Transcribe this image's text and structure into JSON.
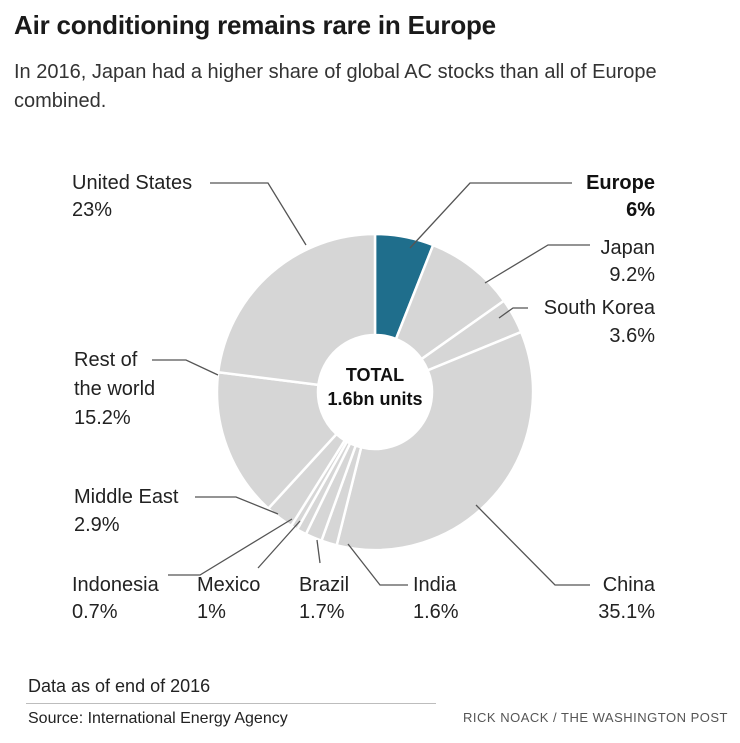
{
  "header": {
    "title": "Air conditioning remains rare in Europe",
    "subtitle": "In 2016, Japan had a higher share of global AC stocks than all of Europe combined."
  },
  "chart_data": {
    "type": "pie",
    "variant": "donut",
    "title": "Air conditioning remains rare in Europe",
    "center_label": [
      "TOTAL",
      "1.6bn units"
    ],
    "unit": "%",
    "slices": [
      {
        "name": "Europe",
        "value": 6,
        "label": "6%",
        "highlight": true
      },
      {
        "name": "Japan",
        "value": 9.2,
        "label": "9.2%"
      },
      {
        "name": "South Korea",
        "value": 3.6,
        "label": "3.6%"
      },
      {
        "name": "China",
        "value": 35.1,
        "label": "35.1%"
      },
      {
        "name": "India",
        "value": 1.6,
        "label": "1.6%"
      },
      {
        "name": "Brazil",
        "value": 1.7,
        "label": "1.7%"
      },
      {
        "name": "Mexico",
        "value": 1,
        "label": "1%"
      },
      {
        "name": "Indonesia",
        "value": 0.7,
        "label": "0.7%"
      },
      {
        "name": "Middle East",
        "value": 2.9,
        "label": "2.9%"
      },
      {
        "name": "Rest of the world",
        "value": 15.2,
        "label": "15.2%"
      },
      {
        "name": "United States",
        "value": 23,
        "label": "23%"
      }
    ]
  },
  "labels": {
    "europe": {
      "name": "Europe",
      "pct": "6%"
    },
    "japan": {
      "name": "Japan",
      "pct": "9.2%"
    },
    "south_korea": {
      "name": "South Korea",
      "pct": "3.6%"
    },
    "china": {
      "name": "China",
      "pct": "35.1%"
    },
    "india": {
      "name": "India",
      "pct": "1.6%"
    },
    "brazil": {
      "name": "Brazil",
      "pct": "1.7%"
    },
    "mexico": {
      "name": "Mexico",
      "pct": "1%"
    },
    "indonesia": {
      "name": "Indonesia",
      "pct": "0.7%"
    },
    "middle_east": {
      "name": "Middle East",
      "pct": "2.9%"
    },
    "rest_of_world": {
      "line1": "Rest of",
      "line2": "the world",
      "pct": "15.2%"
    },
    "united_states": {
      "name": "United States",
      "pct": "23%"
    }
  },
  "center": {
    "line1": "TOTAL",
    "line2": "1.6bn units"
  },
  "footer": {
    "note": "Data as of end of 2016",
    "source": "Source: International Energy Agency",
    "credit": "RICK NOACK / THE WASHINGTON POST"
  },
  "colors": {
    "highlight": "#1f6e8c",
    "slice": "#d6d6d6",
    "slice_border": "#ffffff",
    "leader": "#555555"
  }
}
